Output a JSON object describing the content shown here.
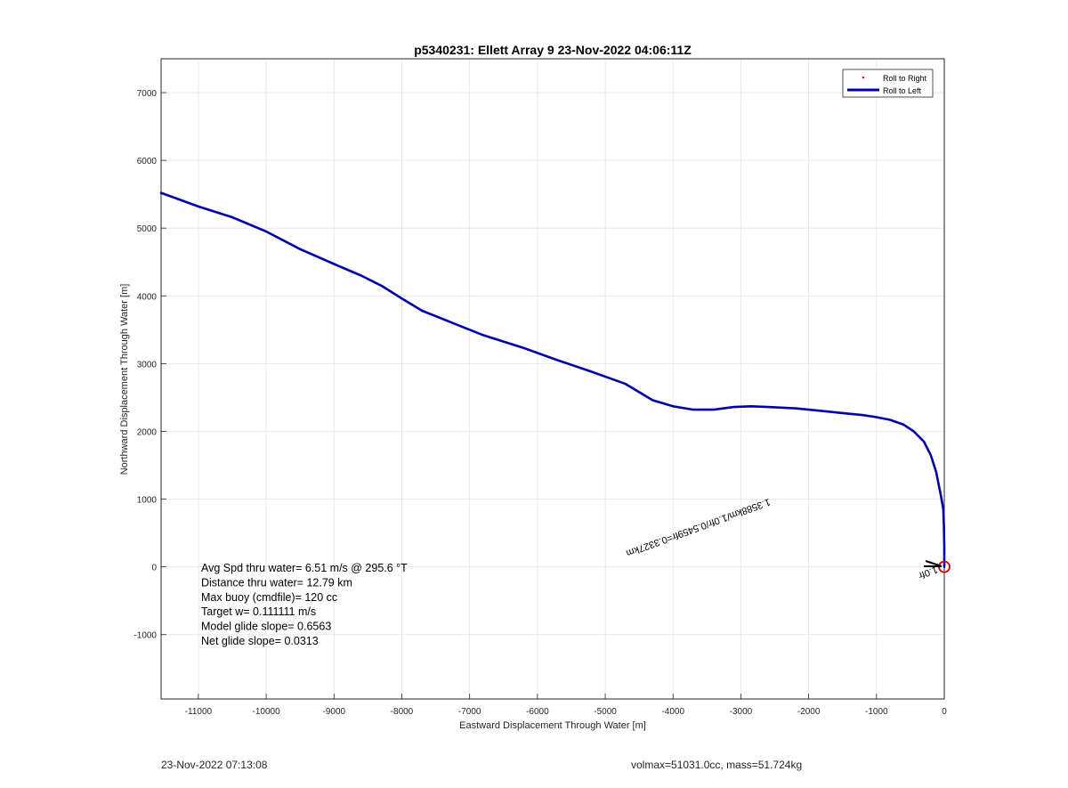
{
  "chart_data": {
    "type": "line",
    "title": "p5340231: Ellett Array 9 23-Nov-2022 04:06:11Z",
    "xlabel": "Eastward Displacement Through Water [m]",
    "ylabel": "Northward Displacement Through Water [m]",
    "xlim": [
      -11550,
      0
    ],
    "ylim": [
      -1950,
      7500
    ],
    "xticks": [
      -11000,
      -10000,
      -9000,
      -8000,
      -7000,
      -6000,
      -5000,
      -4000,
      -3000,
      -2000,
      -1000,
      0
    ],
    "yticks": [
      -1000,
      0,
      1000,
      2000,
      3000,
      4000,
      5000,
      6000,
      7000
    ],
    "grid": true,
    "legend": {
      "position": "top-right",
      "entries": [
        "Roll to Right",
        "Roll to Left"
      ]
    },
    "series": [
      {
        "name": "Roll to Right",
        "style": "marker",
        "color": "#ff0000",
        "x": [],
        "y": []
      },
      {
        "name": "Roll to Left",
        "style": "line",
        "color": "#0000aa",
        "x": [
          0,
          0,
          -5,
          -15,
          -50,
          -80,
          -120,
          -200,
          -300,
          -450,
          -600,
          -800,
          -1000,
          -1200,
          -1500,
          -1800,
          -2200,
          -2600,
          -2850,
          -3100,
          -3400,
          -3700,
          -4000,
          -4300,
          -4700,
          -5200,
          -5700,
          -6200,
          -6800,
          -7300,
          -7700,
          -8000,
          -8300,
          -8600,
          -9000,
          -9500,
          -10000,
          -10500,
          -11000,
          -11550
        ],
        "y": [
          0,
          300,
          600,
          850,
          1050,
          1200,
          1400,
          1650,
          1850,
          2000,
          2100,
          2170,
          2210,
          2240,
          2270,
          2300,
          2340,
          2360,
          2370,
          2360,
          2320,
          2320,
          2370,
          2460,
          2700,
          2880,
          3050,
          3230,
          3420,
          3620,
          3780,
          3960,
          4150,
          4300,
          4470,
          4690,
          4950,
          5160,
          5320,
          5520
        ]
      }
    ],
    "marker": {
      "label": "start-point-circle",
      "x": 0,
      "y": 0,
      "color": "#cc0000"
    },
    "annotations": {
      "rotated_label": "1.3588km/1.0fr/0.5459fr=0.3327km",
      "overlap_label": "1.0fr",
      "stats": [
        "Avg Spd thru water=  6.51 m/s @ 295.6 °T",
        "Distance thru water= 12.79 km",
        "Max buoy (cmdfile)= 120 cc",
        "Target w= 0.111111 m/s",
        "Model glide slope= 0.6563",
        "Net glide slope= 0.0313"
      ]
    }
  },
  "footer": {
    "timestamp": "23-Nov-2022 07:13:08",
    "summary": "volmax=51031.0cc, mass=51.724kg"
  }
}
